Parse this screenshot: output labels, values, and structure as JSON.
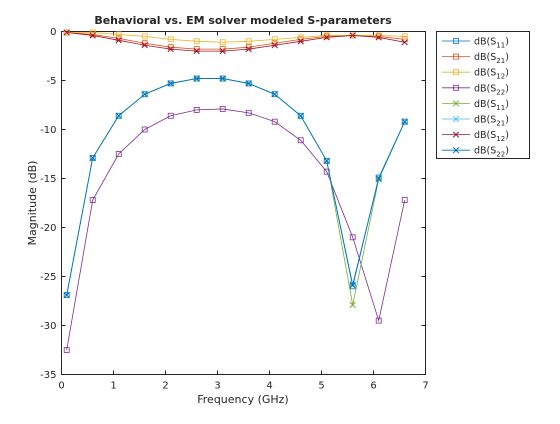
{
  "chart_data": {
    "type": "line",
    "title": "Behavioral vs. EM solver modeled S-parameters",
    "xlabel": "Frequency (GHz)",
    "ylabel": "Magnitude (dB)",
    "xlim": [
      0,
      7
    ],
    "ylim": [
      -35,
      0
    ],
    "xticks": [
      0,
      1,
      2,
      3,
      4,
      5,
      6,
      7
    ],
    "yticks": [
      0,
      -5,
      -10,
      -15,
      -20,
      -25,
      -30,
      -35
    ],
    "grid": false,
    "legend_position": "outside-top-right",
    "x": [
      0.1,
      0.6,
      1.1,
      1.6,
      2.1,
      2.6,
      3.1,
      3.6,
      4.1,
      4.6,
      5.1,
      5.6,
      6.1,
      6.6
    ],
    "series": [
      {
        "name": "dB(S11)",
        "base": "dB(S",
        "sub": "11",
        "sup": ")",
        "color": "#0072BD",
        "marker": "square",
        "values": [
          -26.9,
          -12.9,
          -8.6,
          -6.4,
          -5.3,
          -4.8,
          -4.8,
          -5.3,
          -6.4,
          -8.6,
          -13.2,
          -26.0,
          -14.9,
          -9.2
        ]
      },
      {
        "name": "dB(S21)",
        "base": "dB(S",
        "sub": "21",
        "sup": ")",
        "color": "#D95319",
        "marker": "square",
        "values": [
          -0.1,
          -0.3,
          -0.7,
          -1.2,
          -1.6,
          -1.8,
          -1.8,
          -1.6,
          -1.2,
          -0.8,
          -0.5,
          -0.4,
          -0.5,
          -0.8
        ]
      },
      {
        "name": "dB(S12)",
        "base": "dB(S",
        "sub": "12",
        "sup": ")",
        "color": "#EDB120",
        "marker": "square",
        "values": [
          -0.1,
          -0.1,
          -0.3,
          -0.5,
          -0.8,
          -1.0,
          -1.1,
          -1.0,
          -0.8,
          -0.6,
          -0.4,
          -0.4,
          -0.4,
          -0.5
        ]
      },
      {
        "name": "dB(S22)",
        "base": "dB(S",
        "sub": "22",
        "sup": ")",
        "color": "#7E2F8E",
        "marker": "square",
        "values": [
          -32.5,
          -17.2,
          -12.5,
          -10.0,
          -8.6,
          -8.0,
          -7.9,
          -8.3,
          -9.2,
          -11.1,
          -14.3,
          -21.0,
          -29.5,
          -17.2
        ]
      },
      {
        "name": "dB(S11)",
        "base": "dB(S",
        "sub": "11",
        "sup": ")",
        "color": "#77AC30",
        "marker": "x",
        "values": [
          -26.9,
          -12.9,
          -8.6,
          -6.4,
          -5.3,
          -4.8,
          -4.8,
          -5.3,
          -6.4,
          -8.6,
          -13.2,
          -27.9,
          -15.1,
          -9.2
        ]
      },
      {
        "name": "dB(S21)",
        "base": "dB(S",
        "sub": "21",
        "sup": ")",
        "color": "#4DBEEE",
        "marker": "x",
        "values": [
          -26.9,
          -12.9,
          -8.6,
          -6.4,
          -5.3,
          -4.8,
          -4.8,
          -5.3,
          -6.4,
          -8.6,
          -13.2,
          -25.8,
          -14.9,
          -9.2
        ]
      },
      {
        "name": "dB(S12)",
        "base": "dB(S",
        "sub": "12",
        "sup": ")",
        "color": "#A2142F",
        "marker": "x",
        "values": [
          -0.1,
          -0.4,
          -0.9,
          -1.4,
          -1.8,
          -2.0,
          -2.0,
          -1.8,
          -1.4,
          -1.0,
          -0.6,
          -0.4,
          -0.6,
          -1.1
        ]
      },
      {
        "name": "dB(S22)",
        "base": "dB(S",
        "sub": "22",
        "sup": ")",
        "color": "#0072BD",
        "marker": "x",
        "values": [
          -26.9,
          -12.9,
          -8.6,
          -6.4,
          -5.3,
          -4.8,
          -4.8,
          -5.3,
          -6.4,
          -8.6,
          -13.2,
          -25.9,
          -15.0,
          -9.2
        ]
      }
    ]
  }
}
